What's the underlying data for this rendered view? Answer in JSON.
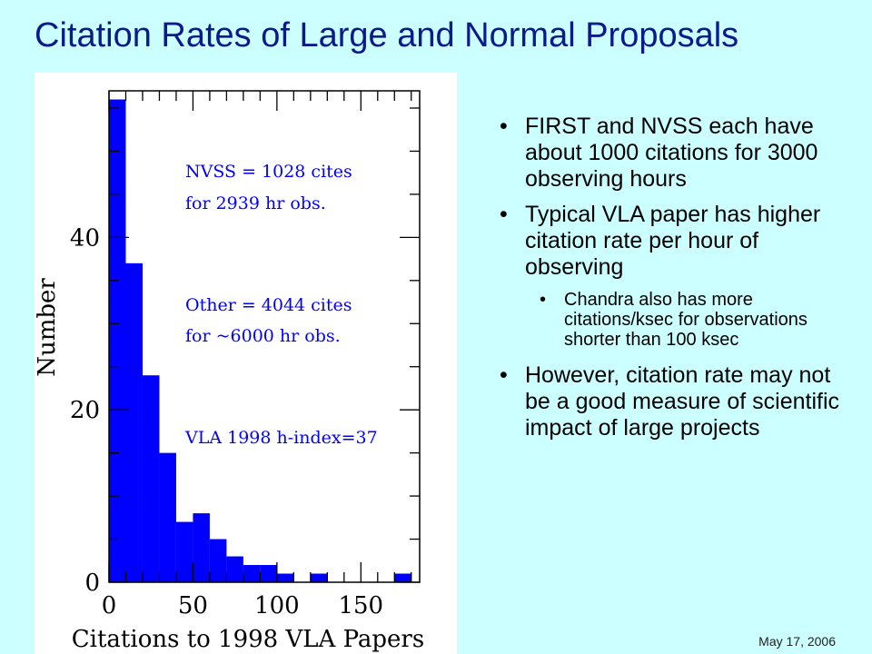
{
  "slide": {
    "title": "Citation Rates of Large and Normal Proposals",
    "date": "May 17, 2006"
  },
  "bullets": [
    {
      "level": 1,
      "text": "FIRST and NVSS each have about 1000 citations for 3000 observing hours"
    },
    {
      "level": 1,
      "text": "Typical VLA paper has higher citation rate per hour of observing"
    },
    {
      "level": 2,
      "text": "Chandra also has more citations/ksec for observations shorter than 100 ksec"
    },
    {
      "level": 1,
      "text": "However, citation rate may not be a good measure of scientific impact of large projects"
    }
  ],
  "chart_data": {
    "type": "bar",
    "xlabel": "Citations to 1998 VLA Papers",
    "ylabel": "Number",
    "xlim": [
      0,
      185
    ],
    "ylim": [
      0,
      57
    ],
    "xticks": [
      0,
      50,
      100,
      150
    ],
    "yticks": [
      0,
      20,
      40
    ],
    "bin_width": 10,
    "bin_starts": [
      0,
      10,
      20,
      30,
      40,
      50,
      60,
      70,
      80,
      90,
      100,
      110,
      120,
      130,
      140,
      150,
      160,
      170,
      180
    ],
    "values": [
      56,
      37,
      24,
      15,
      7,
      8,
      5,
      3,
      2,
      2,
      1,
      0,
      1,
      0,
      0,
      0,
      0,
      1,
      0
    ],
    "bar_color": "#0000ff",
    "annotations": [
      "NVSS = 1028 cites",
      "for 2939 hr obs.",
      "Other = 4044 cites",
      "for ~6000 hr obs.",
      "VLA 1998 h-index=37"
    ],
    "annotation_color": "#0000ff"
  }
}
